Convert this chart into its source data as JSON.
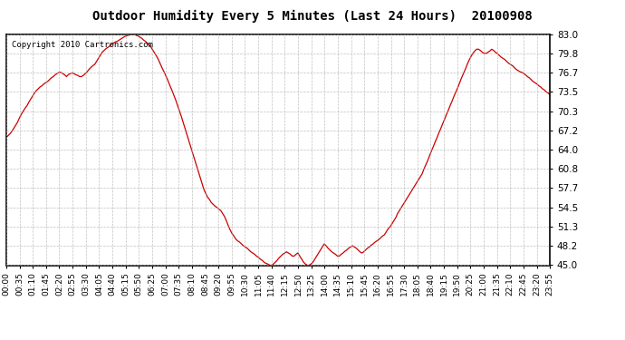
{
  "title": "Outdoor Humidity Every 5 Minutes (Last 24 Hours)  20100908",
  "copyright": "Copyright 2010 Cartronics.com",
  "line_color": "#cc0000",
  "bg_color": "#ffffff",
  "plot_bg_color": "#ffffff",
  "grid_color": "#b0b0b0",
  "ylim": [
    45.0,
    83.0
  ],
  "yticks": [
    45.0,
    48.2,
    51.3,
    54.5,
    57.7,
    60.8,
    64.0,
    67.2,
    70.3,
    73.5,
    76.7,
    79.8,
    83.0
  ],
  "xtick_labels": [
    "00:00",
    "00:35",
    "01:10",
    "01:45",
    "02:20",
    "02:55",
    "03:30",
    "04:05",
    "04:40",
    "05:15",
    "05:50",
    "06:25",
    "07:00",
    "07:35",
    "08:10",
    "08:45",
    "09:20",
    "09:55",
    "10:30",
    "11:05",
    "11:40",
    "12:15",
    "12:50",
    "13:25",
    "14:00",
    "14:35",
    "15:10",
    "15:45",
    "16:20",
    "16:55",
    "17:30",
    "18:05",
    "18:40",
    "19:15",
    "19:50",
    "20:25",
    "21:00",
    "21:35",
    "22:10",
    "22:45",
    "23:20",
    "23:55"
  ],
  "humidity_values": [
    66.0,
    66.3,
    66.6,
    67.0,
    67.5,
    68.0,
    68.5,
    69.2,
    69.8,
    70.3,
    70.8,
    71.2,
    71.8,
    72.3,
    72.8,
    73.3,
    73.7,
    74.0,
    74.3,
    74.5,
    74.8,
    75.0,
    75.2,
    75.5,
    75.8,
    76.0,
    76.3,
    76.5,
    76.7,
    76.7,
    76.5,
    76.3,
    76.0,
    76.3,
    76.5,
    76.6,
    76.5,
    76.3,
    76.2,
    76.0,
    76.0,
    76.2,
    76.5,
    76.8,
    77.2,
    77.5,
    77.8,
    78.0,
    78.5,
    79.0,
    79.5,
    80.0,
    80.3,
    80.6,
    80.8,
    81.0,
    81.3,
    81.5,
    81.7,
    81.8,
    82.0,
    82.2,
    82.4,
    82.6,
    82.7,
    82.8,
    82.9,
    83.0,
    83.0,
    82.8,
    82.7,
    82.5,
    82.3,
    82.0,
    81.8,
    81.5,
    81.2,
    80.8,
    80.3,
    79.8,
    79.3,
    78.7,
    78.0,
    77.3,
    76.7,
    76.0,
    75.3,
    74.5,
    73.8,
    73.0,
    72.2,
    71.3,
    70.4,
    69.5,
    68.5,
    67.5,
    66.5,
    65.5,
    64.5,
    63.5,
    62.5,
    61.5,
    60.5,
    59.5,
    58.5,
    57.5,
    56.8,
    56.2,
    55.8,
    55.3,
    55.0,
    54.7,
    54.5,
    54.2,
    54.0,
    53.5,
    53.0,
    52.3,
    51.5,
    50.8,
    50.2,
    49.8,
    49.3,
    49.0,
    48.8,
    48.5,
    48.2,
    48.0,
    47.8,
    47.5,
    47.2,
    47.0,
    46.8,
    46.5,
    46.3,
    46.0,
    45.8,
    45.5,
    45.3,
    45.2,
    45.0,
    45.0,
    45.2,
    45.5,
    45.8,
    46.2,
    46.5,
    46.8,
    47.0,
    47.2,
    47.0,
    46.8,
    46.5,
    46.5,
    46.8,
    47.0,
    46.5,
    46.0,
    45.5,
    45.2,
    45.0,
    45.0,
    45.2,
    45.5,
    46.0,
    46.5,
    47.0,
    47.5,
    48.0,
    48.5,
    48.2,
    47.8,
    47.5,
    47.2,
    47.0,
    46.8,
    46.5,
    46.5,
    46.8,
    47.0,
    47.3,
    47.5,
    47.8,
    48.0,
    48.2,
    48.0,
    47.8,
    47.5,
    47.2,
    47.0,
    47.2,
    47.5,
    47.8,
    48.0,
    48.3,
    48.5,
    48.8,
    49.0,
    49.2,
    49.5,
    49.8,
    50.0,
    50.5,
    51.0,
    51.3,
    51.8,
    52.3,
    52.8,
    53.5,
    54.0,
    54.5,
    55.0,
    55.5,
    56.0,
    56.5,
    57.0,
    57.5,
    58.0,
    58.5,
    59.0,
    59.5,
    60.0,
    60.8,
    61.5,
    62.2,
    63.0,
    63.8,
    64.5,
    65.3,
    66.0,
    66.8,
    67.5,
    68.3,
    69.0,
    69.8,
    70.5,
    71.3,
    72.0,
    72.8,
    73.5,
    74.2,
    75.0,
    75.8,
    76.5,
    77.2,
    78.0,
    78.7,
    79.3,
    79.8,
    80.2,
    80.5,
    80.5,
    80.3,
    80.0,
    79.8,
    79.8,
    80.0,
    80.2,
    80.5,
    80.3,
    80.0,
    79.8,
    79.5,
    79.2,
    79.0,
    78.8,
    78.5,
    78.2,
    78.0,
    77.8,
    77.5,
    77.2,
    77.0,
    76.8,
    76.7,
    76.5,
    76.3,
    76.0,
    75.8,
    75.5,
    75.2,
    75.0,
    74.8,
    74.5,
    74.3,
    74.0,
    73.8,
    73.5,
    73.3,
    73.0
  ]
}
